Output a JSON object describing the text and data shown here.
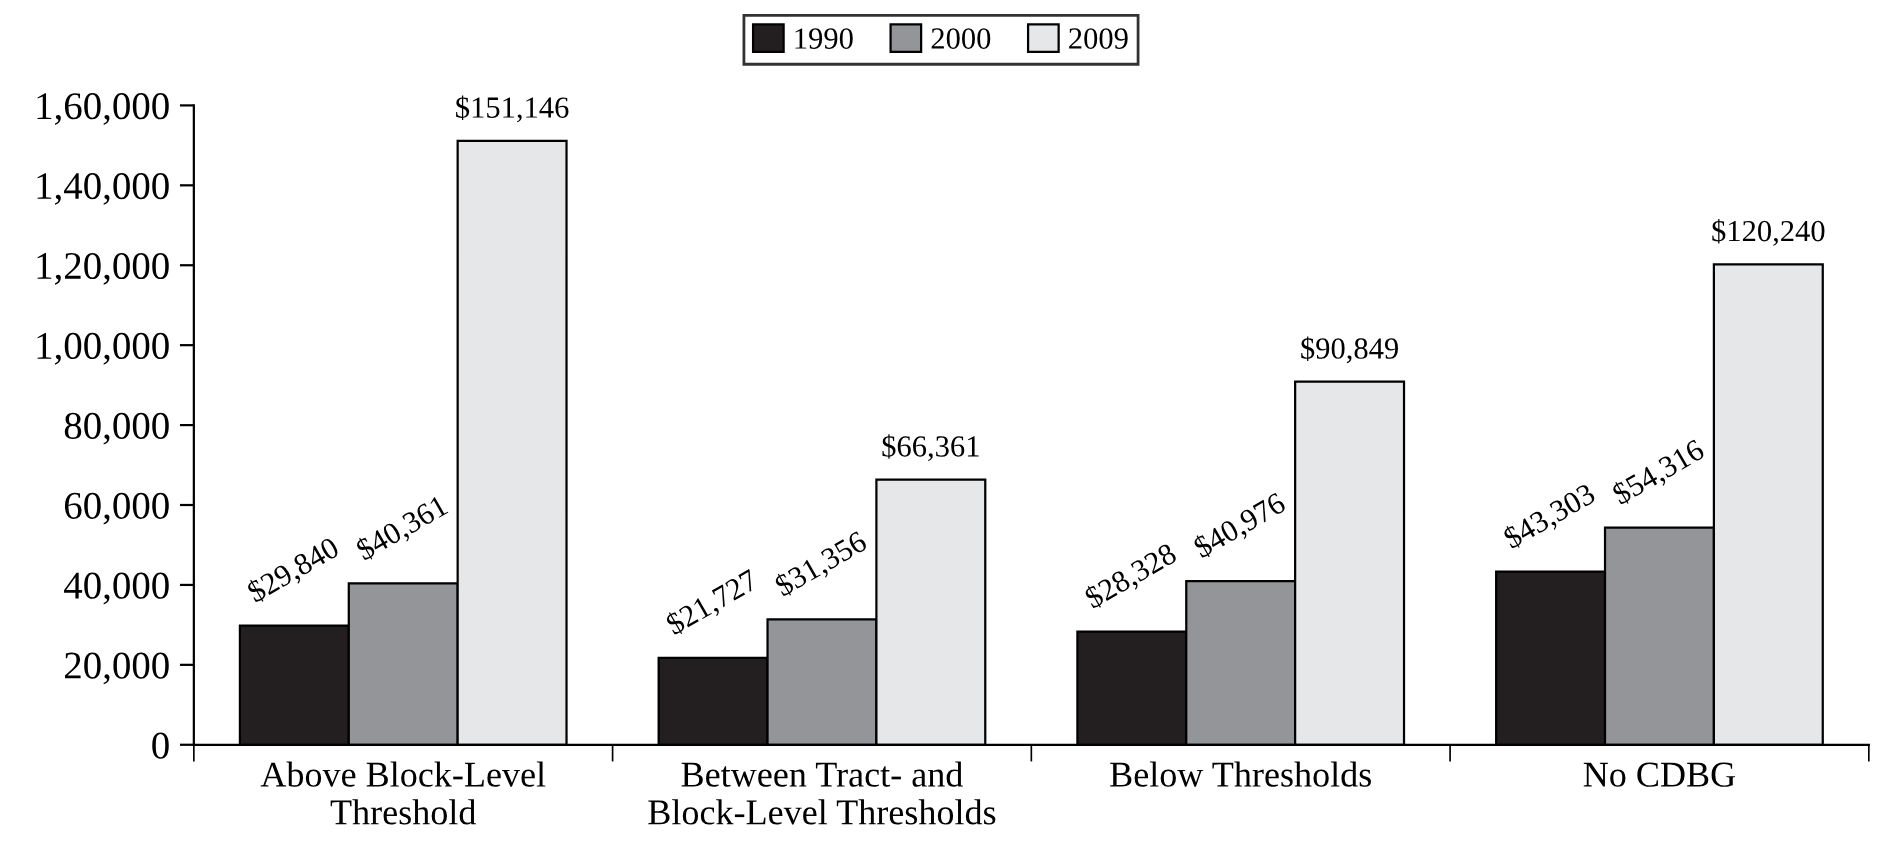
{
  "chart_data": {
    "type": "bar",
    "categories": [
      "Above Block-Level\nThreshold",
      "Between Tract- and\nBlock-Level Thresholds",
      "Below Thresholds",
      "No CDBG"
    ],
    "series": [
      {
        "name": "1990",
        "color": "#231f20",
        "values": [
          29840,
          21727,
          28328,
          43303
        ],
        "value_labels": [
          "$29,840",
          "$21,727",
          "$28,328",
          "$43,303"
        ]
      },
      {
        "name": "2000",
        "color": "#939598",
        "values": [
          40361,
          31356,
          40976,
          54316
        ],
        "value_labels": [
          "$40,361",
          "$31,356",
          "$40,976",
          "$54,316"
        ]
      },
      {
        "name": "2009",
        "color": "#e6e7e8",
        "values": [
          151146,
          66361,
          90849,
          120240
        ],
        "value_labels": [
          "$151,146",
          "$66,361",
          "$90,849",
          "$120,240"
        ]
      }
    ],
    "ylim": [
      0,
      160000
    ],
    "yticks": [
      0,
      {
        "value": 20000,
        "label": "20,000"
      },
      {
        "value": 40000,
        "label": "40,000"
      },
      {
        "value": 60000,
        "label": "60,000"
      },
      {
        "value": 80000,
        "label": "80,000"
      },
      {
        "value": 100000,
        "label": "1,00,000"
      },
      {
        "value": 120000,
        "label": "1,20,000"
      },
      {
        "value": 140000,
        "label": "1,40,000"
      },
      {
        "value": 160000,
        "label": "1,60,000"
      }
    ],
    "grid": false,
    "legend": "top"
  }
}
